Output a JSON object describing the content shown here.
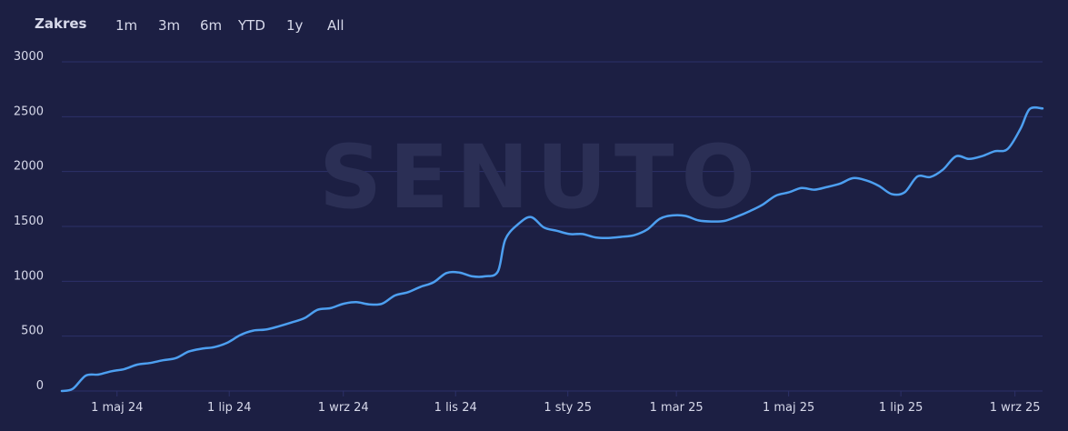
{
  "range_selector": {
    "title": "Zakres",
    "buttons": [
      "1m",
      "3m",
      "6m",
      "YTD",
      "1y",
      "All"
    ]
  },
  "watermark": "SENUTO",
  "colors": {
    "background": "#1c1f43",
    "line": "#4d9ff0",
    "grid": "#2c3068"
  },
  "chart_data": {
    "type": "line",
    "x_type": "date",
    "ylim": [
      0,
      3000
    ],
    "y_ticks": [
      0,
      500,
      1000,
      1500,
      2000,
      2500,
      3000
    ],
    "x_ticks": [
      {
        "date": "2024-05-01",
        "label": "1 maj 24"
      },
      {
        "date": "2024-07-01",
        "label": "1 lip 24"
      },
      {
        "date": "2024-09-01",
        "label": "1 wrz 24"
      },
      {
        "date": "2024-11-01",
        "label": "1 lis 24"
      },
      {
        "date": "2025-01-01",
        "label": "1 sty 25"
      },
      {
        "date": "2025-03-01",
        "label": "1 mar 25"
      },
      {
        "date": "2025-05-01",
        "label": "1 maj 25"
      },
      {
        "date": "2025-07-01",
        "label": "1 lip 25"
      },
      {
        "date": "2025-09-01",
        "label": "1 wrz 25"
      }
    ],
    "grid": true,
    "legend": "none",
    "series": [
      {
        "points": [
          [
            "2024-04-01",
            0
          ],
          [
            "2024-04-07",
            20
          ],
          [
            "2024-04-14",
            140
          ],
          [
            "2024-04-21",
            150
          ],
          [
            "2024-04-28",
            180
          ],
          [
            "2024-05-05",
            200
          ],
          [
            "2024-05-12",
            240
          ],
          [
            "2024-05-19",
            255
          ],
          [
            "2024-05-26",
            280
          ],
          [
            "2024-06-02",
            300
          ],
          [
            "2024-06-09",
            360
          ],
          [
            "2024-06-16",
            385
          ],
          [
            "2024-06-23",
            400
          ],
          [
            "2024-06-30",
            440
          ],
          [
            "2024-07-07",
            510
          ],
          [
            "2024-07-14",
            550
          ],
          [
            "2024-07-21",
            560
          ],
          [
            "2024-07-28",
            590
          ],
          [
            "2024-08-04",
            625
          ],
          [
            "2024-08-11",
            665
          ],
          [
            "2024-08-18",
            740
          ],
          [
            "2024-08-25",
            755
          ],
          [
            "2024-09-01",
            795
          ],
          [
            "2024-09-08",
            810
          ],
          [
            "2024-09-15",
            790
          ],
          [
            "2024-09-22",
            795
          ],
          [
            "2024-09-29",
            870
          ],
          [
            "2024-10-06",
            900
          ],
          [
            "2024-10-13",
            950
          ],
          [
            "2024-10-20",
            990
          ],
          [
            "2024-10-27",
            1075
          ],
          [
            "2024-11-03",
            1080
          ],
          [
            "2024-11-10",
            1045
          ],
          [
            "2024-11-17",
            1045
          ],
          [
            "2024-11-24",
            1090
          ],
          [
            "2024-11-28",
            1380
          ],
          [
            "2024-12-05",
            1520
          ],
          [
            "2024-12-12",
            1585
          ],
          [
            "2024-12-19",
            1490
          ],
          [
            "2024-12-26",
            1460
          ],
          [
            "2025-01-02",
            1430
          ],
          [
            "2025-01-09",
            1430
          ],
          [
            "2025-01-16",
            1400
          ],
          [
            "2025-01-23",
            1395
          ],
          [
            "2025-01-30",
            1405
          ],
          [
            "2025-02-06",
            1420
          ],
          [
            "2025-02-13",
            1470
          ],
          [
            "2025-02-20",
            1570
          ],
          [
            "2025-02-27",
            1600
          ],
          [
            "2025-03-06",
            1595
          ],
          [
            "2025-03-13",
            1555
          ],
          [
            "2025-03-20",
            1545
          ],
          [
            "2025-03-27",
            1550
          ],
          [
            "2025-04-03",
            1590
          ],
          [
            "2025-04-10",
            1640
          ],
          [
            "2025-04-17",
            1700
          ],
          [
            "2025-04-24",
            1780
          ],
          [
            "2025-05-01",
            1810
          ],
          [
            "2025-05-08",
            1850
          ],
          [
            "2025-05-15",
            1835
          ],
          [
            "2025-05-22",
            1860
          ],
          [
            "2025-05-29",
            1890
          ],
          [
            "2025-06-05",
            1940
          ],
          [
            "2025-06-12",
            1920
          ],
          [
            "2025-06-19",
            1870
          ],
          [
            "2025-06-26",
            1795
          ],
          [
            "2025-07-03",
            1810
          ],
          [
            "2025-07-10",
            1955
          ],
          [
            "2025-07-17",
            1950
          ],
          [
            "2025-07-24",
            2020
          ],
          [
            "2025-07-31",
            2140
          ],
          [
            "2025-08-07",
            2115
          ],
          [
            "2025-08-14",
            2140
          ],
          [
            "2025-08-21",
            2185
          ],
          [
            "2025-08-28",
            2205
          ],
          [
            "2025-09-04",
            2390
          ],
          [
            "2025-09-09",
            2570
          ],
          [
            "2025-09-16",
            2575
          ]
        ]
      }
    ]
  }
}
